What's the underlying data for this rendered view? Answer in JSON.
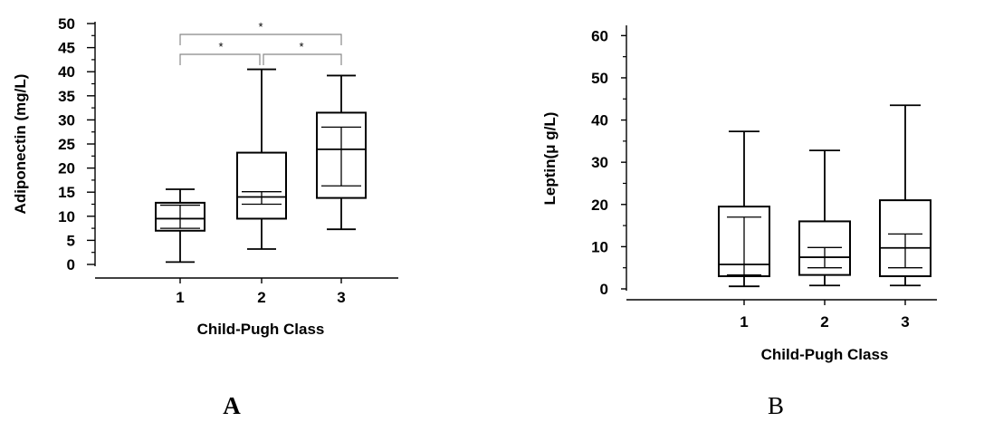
{
  "chart_data": [
    {
      "type": "box",
      "panel_label": "A",
      "categories": [
        "1",
        "2",
        "3"
      ],
      "xlabel": "Child-Pugh Class",
      "ylabel": "Adiponectin (mg/L)",
      "ylim": [
        0,
        50
      ],
      "yticks": [
        "0",
        "5",
        "10",
        "15",
        "20",
        "25",
        "30",
        "35",
        "40",
        "45",
        "50"
      ],
      "boxes": [
        {
          "category": "1",
          "whisker_low": 0.5,
          "q1": 7.0,
          "median": 9.5,
          "q3": 12.8,
          "whisker_high": 15.6,
          "ci_low": 7.5,
          "ci_high": 12.3
        },
        {
          "category": "2",
          "whisker_low": 3.2,
          "q1": 9.5,
          "median": 14.0,
          "q3": 23.2,
          "whisker_high": 40.5,
          "ci_low": 12.5,
          "ci_high": 15.1
        },
        {
          "category": "3",
          "whisker_low": 7.3,
          "q1": 13.8,
          "median": 23.9,
          "q3": 31.5,
          "whisker_high": 39.2,
          "ci_low": 16.3,
          "ci_high": 28.5
        }
      ],
      "significance": [
        {
          "from": "1",
          "to": "2",
          "label": "*"
        },
        {
          "from": "2",
          "to": "3",
          "label": "*"
        },
        {
          "from": "1",
          "to": "3",
          "label": "*"
        }
      ]
    },
    {
      "type": "box",
      "panel_label": "B",
      "categories": [
        "1",
        "2",
        "3"
      ],
      "xlabel": "Child-Pugh Class",
      "ylabel": "Leptin(μ g/L)",
      "ylim": [
        0,
        62
      ],
      "yticks": [
        "0",
        "10",
        "20",
        "30",
        "40",
        "50",
        "60"
      ],
      "boxes": [
        {
          "category": "1",
          "whisker_low": 0.6,
          "q1": 3.0,
          "median": 5.8,
          "q3": 19.5,
          "whisker_high": 37.3,
          "ci_low": 3.3,
          "ci_high": 17.0
        },
        {
          "category": "2",
          "whisker_low": 0.8,
          "q1": 3.3,
          "median": 7.5,
          "q3": 16.0,
          "whisker_high": 32.8,
          "ci_low": 5.0,
          "ci_high": 9.8
        },
        {
          "category": "3",
          "whisker_low": 0.8,
          "q1": 3.0,
          "median": 9.7,
          "q3": 21.0,
          "whisker_high": 43.5,
          "ci_low": 5.0,
          "ci_high": 13.0
        }
      ]
    }
  ]
}
